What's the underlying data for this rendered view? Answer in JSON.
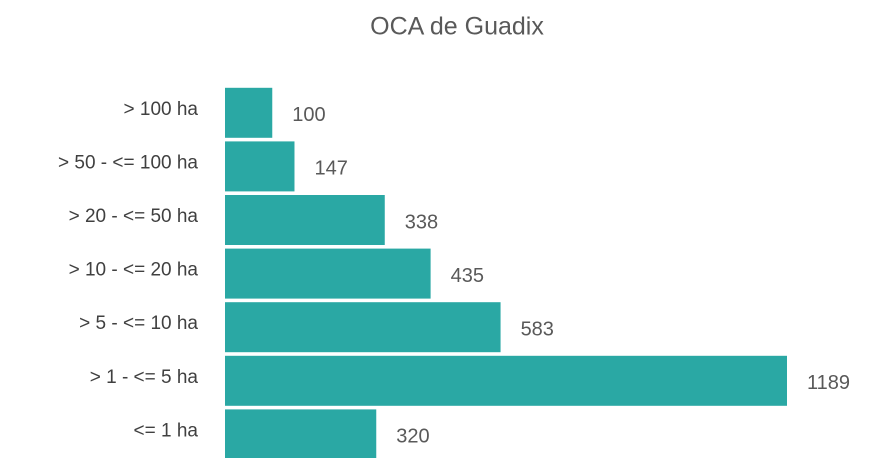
{
  "chart_data": {
    "type": "bar",
    "orientation": "horizontal",
    "title": "OCA de Guadix",
    "categories": [
      "> 100 ha",
      "> 50 - <= 100 ha",
      "> 20 - <= 50 ha",
      "> 10 - <= 20 ha",
      "> 5 - <= 10 ha",
      "> 1 - <= 5 ha",
      "<= 1 ha"
    ],
    "values": [
      100,
      147,
      338,
      435,
      583,
      1189,
      320
    ],
    "color": "#2aa8a4"
  }
}
